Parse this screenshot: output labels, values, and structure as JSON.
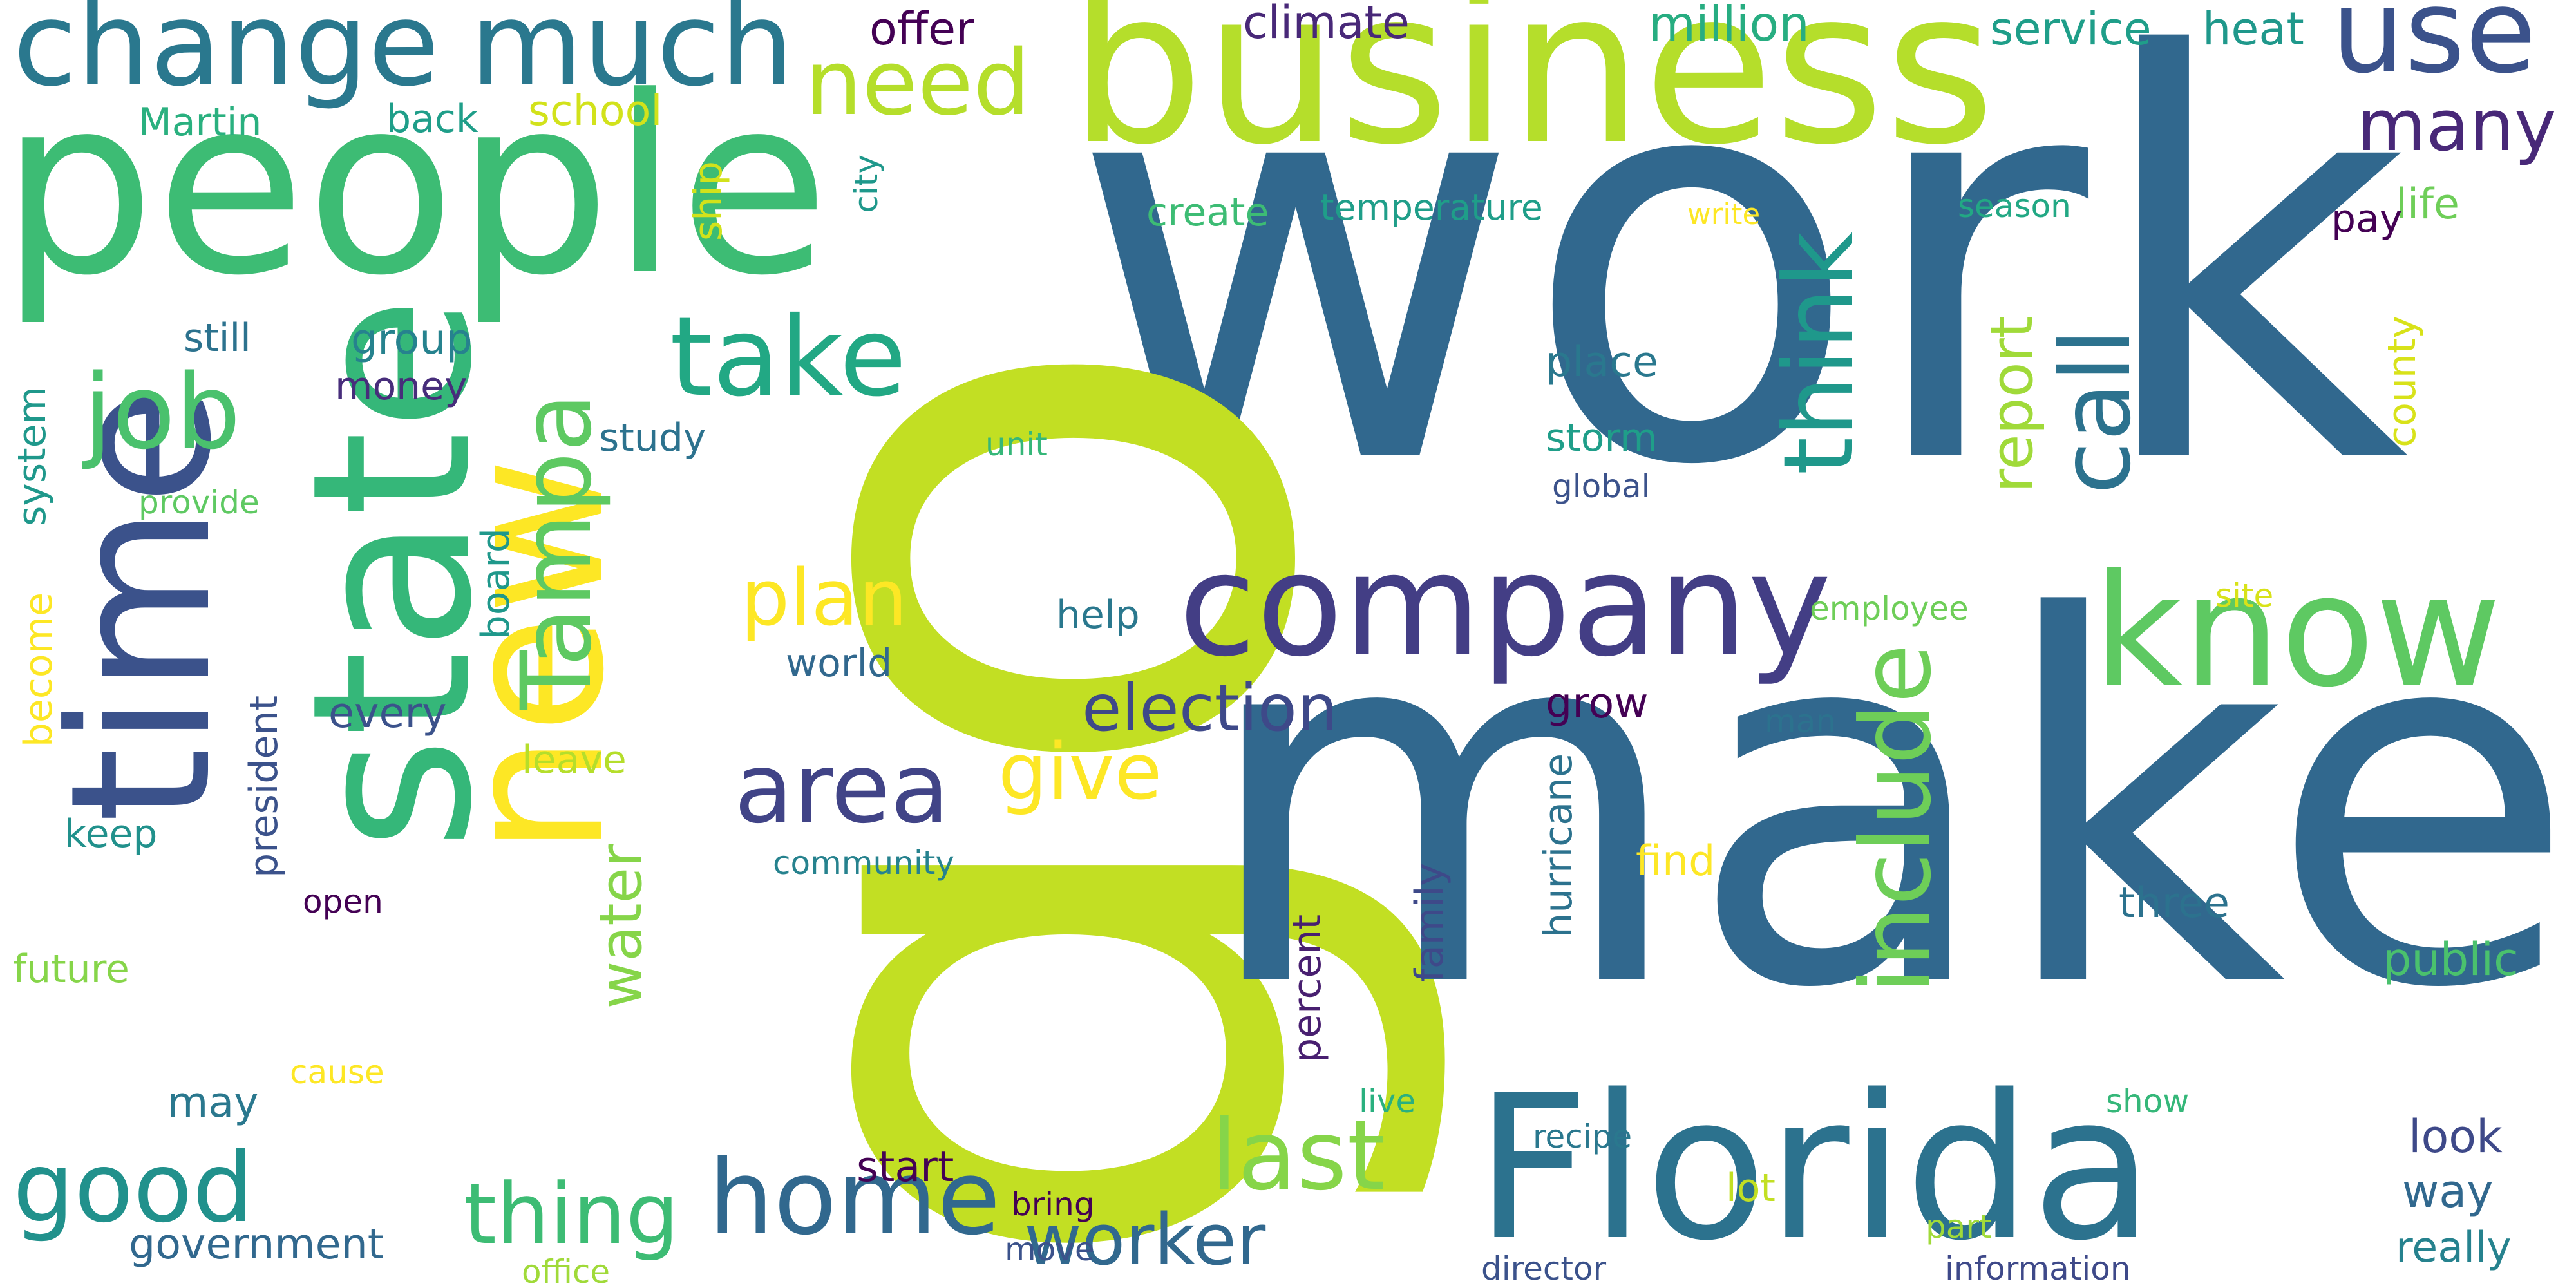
{
  "title": "",
  "words": [
    {
      "text": "work",
      "color": "#31688e"
    },
    {
      "text": "go",
      "color": "#c2df23"
    },
    {
      "text": "make",
      "color": "#31688e"
    },
    {
      "text": "business",
      "color": "#b5de2b"
    },
    {
      "text": "people",
      "color": "#3dbc74"
    },
    {
      "text": "state",
      "color": "#35b779"
    },
    {
      "text": "time",
      "color": "#3b528b"
    },
    {
      "text": "new",
      "color": "#fde725"
    },
    {
      "text": "Florida",
      "color": "#2c728e"
    },
    {
      "text": "company",
      "color": "#433e85"
    },
    {
      "text": "know",
      "color": "#5ec962"
    },
    {
      "text": "change",
      "color": "#2a788e"
    },
    {
      "text": "much",
      "color": "#2a788e"
    },
    {
      "text": "use",
      "color": "#3b528b"
    },
    {
      "text": "need",
      "color": "#b5de2b"
    },
    {
      "text": "take",
      "color": "#22a884"
    },
    {
      "text": "job",
      "color": "#4ac16d"
    },
    {
      "text": "Tampa",
      "color": "#5ec962"
    },
    {
      "text": "area",
      "color": "#414487"
    },
    {
      "text": "think",
      "color": "#1f988b"
    },
    {
      "text": "call",
      "color": "#2c728e"
    },
    {
      "text": "include",
      "color": "#6ece58"
    },
    {
      "text": "home",
      "color": "#31688e"
    },
    {
      "text": "good",
      "color": "#21918c"
    },
    {
      "text": "last",
      "color": "#86d549"
    },
    {
      "text": "thing",
      "color": "#3dbc74"
    },
    {
      "text": "worker",
      "color": "#31688e"
    },
    {
      "text": "many",
      "color": "#482878"
    },
    {
      "text": "plan",
      "color": "#fde725"
    },
    {
      "text": "give",
      "color": "#fde725"
    },
    {
      "text": "election",
      "color": "#3e4989"
    },
    {
      "text": "report",
      "color": "#a0da39"
    },
    {
      "text": "water",
      "color": "#86d549"
    },
    {
      "text": "million",
      "color": "#27ad81"
    },
    {
      "text": "climate",
      "color": "#482878"
    },
    {
      "text": "offer",
      "color": "#440154"
    },
    {
      "text": "service",
      "color": "#1f9e89"
    },
    {
      "text": "heat",
      "color": "#1f988b"
    },
    {
      "text": "school",
      "color": "#d2e21b"
    },
    {
      "text": "back",
      "color": "#1f9e89"
    },
    {
      "text": "Martin",
      "color": "#2ab07f"
    },
    {
      "text": "create",
      "color": "#3dbc74"
    },
    {
      "text": "temperature",
      "color": "#1f9e89"
    },
    {
      "text": "write",
      "color": "#fde725"
    },
    {
      "text": "season",
      "color": "#22a884"
    },
    {
      "text": "life",
      "color": "#6ece58"
    },
    {
      "text": "pay",
      "color": "#440154"
    },
    {
      "text": "still",
      "color": "#2c728e"
    },
    {
      "text": "group",
      "color": "#26828e"
    },
    {
      "text": "money",
      "color": "#472d7b"
    },
    {
      "text": "city",
      "color": "#1f988b"
    },
    {
      "text": "ship",
      "color": "#d2e21b"
    },
    {
      "text": "place",
      "color": "#2a788e"
    },
    {
      "text": "storm",
      "color": "#1f9e89"
    },
    {
      "text": "global",
      "color": "#3b528b"
    },
    {
      "text": "study",
      "color": "#2c728e"
    },
    {
      "text": "unit",
      "color": "#35b779"
    },
    {
      "text": "provide",
      "color": "#5ec962"
    },
    {
      "text": "system",
      "color": "#1f988b"
    },
    {
      "text": "board",
      "color": "#1f988b"
    },
    {
      "text": "help",
      "color": "#2a788e"
    },
    {
      "text": "world",
      "color": "#31688e"
    },
    {
      "text": "every",
      "color": "#3b528b"
    },
    {
      "text": "grow",
      "color": "#440154"
    },
    {
      "text": "become",
      "color": "#fde725"
    },
    {
      "text": "president",
      "color": "#3b528b"
    },
    {
      "text": "leave",
      "color": "#b5de2b"
    },
    {
      "text": "employee",
      "color": "#6ece58"
    },
    {
      "text": "site",
      "color": "#d8e219"
    },
    {
      "text": "county",
      "color": "#d8e219"
    },
    {
      "text": "keep",
      "color": "#21918c"
    },
    {
      "text": "community",
      "color": "#26828e"
    },
    {
      "text": "open",
      "color": "#440154"
    },
    {
      "text": "percent",
      "color": "#481f70"
    },
    {
      "text": "family",
      "color": "#3e4989"
    },
    {
      "text": "hurricane",
      "color": "#2c728e"
    },
    {
      "text": "find",
      "color": "#fde725"
    },
    {
      "text": "man",
      "color": "#2c728e"
    },
    {
      "text": "three",
      "color": "#2c728e"
    },
    {
      "text": "public",
      "color": "#4ac16d"
    },
    {
      "text": "future",
      "color": "#86d549"
    },
    {
      "text": "may",
      "color": "#2a788e"
    },
    {
      "text": "cause",
      "color": "#fde725"
    },
    {
      "text": "live",
      "color": "#2ab07f"
    },
    {
      "text": "show",
      "color": "#35b779"
    },
    {
      "text": "start",
      "color": "#440154"
    },
    {
      "text": "recipe",
      "color": "#2a788e"
    },
    {
      "text": "look",
      "color": "#3e4989"
    },
    {
      "text": "way",
      "color": "#31688e"
    },
    {
      "text": "bring",
      "color": "#440154"
    },
    {
      "text": "lot",
      "color": "#c2df23"
    },
    {
      "text": "government",
      "color": "#31688e"
    },
    {
      "text": "move",
      "color": "#3b528b"
    },
    {
      "text": "part",
      "color": "#a0da39"
    },
    {
      "text": "really",
      "color": "#26828e"
    },
    {
      "text": "office",
      "color": "#a0da39"
    },
    {
      "text": "director",
      "color": "#3b528b"
    },
    {
      "text": "information",
      "color": "#3e4989"
    }
  ]
}
